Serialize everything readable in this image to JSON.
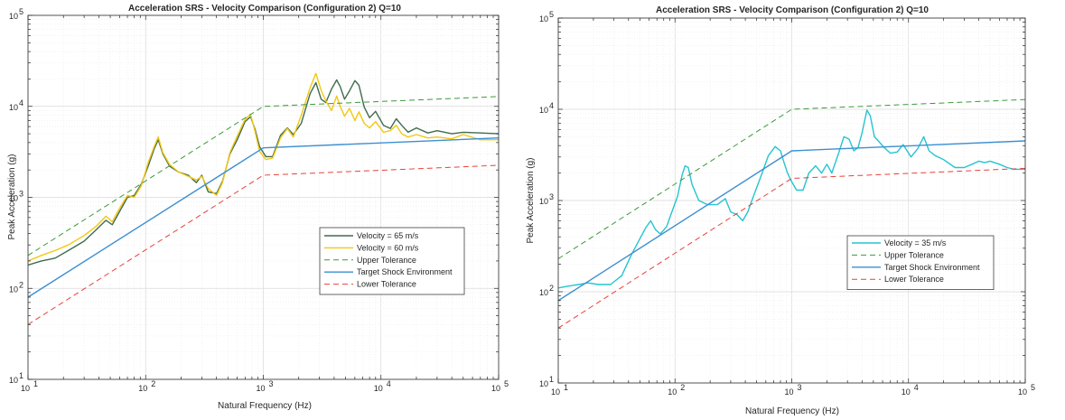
{
  "chart_data": [
    {
      "type": "line",
      "title": "Acceleration SRS - Velocity Comparison (Configuration 2) Q=10",
      "xlabel": "Natural Frequency (Hz)",
      "ylabel": "Peak Acceleration (g)",
      "xscale": "log",
      "yscale": "log",
      "xlim": [
        10,
        100000
      ],
      "ylim": [
        10,
        100000
      ],
      "grid": true,
      "legend_position": "lower-right",
      "xticks": [
        {
          "base": "10",
          "exp": "1"
        },
        {
          "base": "10",
          "exp": "2"
        },
        {
          "base": "10",
          "exp": "3"
        },
        {
          "base": "10",
          "exp": "4"
        },
        {
          "base": "10",
          "exp": "5"
        }
      ],
      "yticks": [
        {
          "base": "10",
          "exp": "1"
        },
        {
          "base": "10",
          "exp": "2"
        },
        {
          "base": "10",
          "exp": "3"
        },
        {
          "base": "10",
          "exp": "4"
        },
        {
          "base": "10",
          "exp": "5"
        }
      ],
      "series": [
        {
          "name": "Velocity = 65 m/s",
          "color": "#3f6b4f",
          "dash": "solid",
          "x": [
            10,
            13,
            17,
            22,
            30,
            38,
            46,
            52,
            60,
            70,
            80,
            92,
            105,
            118,
            128,
            140,
            160,
            190,
            230,
            270,
            300,
            340,
            400,
            450,
            520,
            600,
            700,
            780,
            850,
            930,
            1050,
            1200,
            1400,
            1600,
            1800,
            2100,
            2500,
            2800,
            3100,
            3400,
            3800,
            4200,
            4500,
            4900,
            5400,
            6000,
            6500,
            7200,
            8000,
            9000,
            10500,
            12000,
            13500,
            15000,
            17000,
            20000,
            25000,
            30000,
            40000,
            50000,
            70000,
            100000
          ],
          "y": [
            180,
            200,
            215,
            260,
            330,
            440,
            560,
            500,
            700,
            1000,
            1050,
            1400,
            2200,
            3400,
            4300,
            3000,
            2200,
            1900,
            1750,
            1450,
            1750,
            1150,
            1100,
            1500,
            3000,
            4300,
            6800,
            7700,
            5600,
            3600,
            2800,
            2800,
            4800,
            5800,
            4900,
            6500,
            13800,
            18200,
            12000,
            11000,
            15500,
            19500,
            16500,
            12000,
            14800,
            19200,
            17000,
            9800,
            7500,
            8800,
            6200,
            5700,
            7300,
            6200,
            5200,
            5800,
            5100,
            5400,
            5000,
            5200,
            5100,
            5000
          ]
        },
        {
          "name": "Velocity = 60 m/s",
          "color": "#f2c811",
          "dash": "solid",
          "x": [
            10,
            13,
            17,
            22,
            30,
            38,
            46,
            52,
            60,
            70,
            80,
            92,
            105,
            118,
            128,
            140,
            160,
            190,
            230,
            270,
            300,
            340,
            400,
            450,
            520,
            600,
            700,
            780,
            850,
            930,
            1050,
            1200,
            1400,
            1600,
            1800,
            2100,
            2500,
            2800,
            3100,
            3400,
            3800,
            4200,
            4500,
            4900,
            5400,
            6000,
            6500,
            7200,
            8000,
            9000,
            10500,
            12000,
            13500,
            15000,
            17000,
            20000,
            25000,
            30000,
            40000,
            50000,
            70000,
            100000
          ],
          "y": [
            200,
            230,
            260,
            300,
            380,
            480,
            620,
            540,
            760,
            1050,
            1000,
            1350,
            2400,
            3600,
            4600,
            3100,
            2300,
            1900,
            1700,
            1550,
            1700,
            1250,
            1050,
            1450,
            3100,
            4700,
            7200,
            8200,
            5300,
            3200,
            2600,
            2700,
            4500,
            5700,
            4600,
            8000,
            16000,
            23000,
            15000,
            11500,
            9000,
            13000,
            10000,
            7800,
            9500,
            7000,
            8700,
            6500,
            5800,
            6800,
            5200,
            5400,
            6200,
            5000,
            4600,
            4900,
            4500,
            4600,
            4400,
            4900,
            4300,
            4300
          ]
        },
        {
          "name": "Upper Tolerance",
          "color": "#3a9a3a",
          "dash": "dashed",
          "x": [
            10,
            1000,
            100000
          ],
          "y": [
            230,
            10000,
            12800
          ]
        },
        {
          "name": "Target Shock Environment",
          "color": "#3d8fd1",
          "dash": "solid",
          "x": [
            10,
            1000,
            100000
          ],
          "y": [
            80,
            3500,
            4500
          ]
        },
        {
          "name": "Lower Tolerance",
          "color": "#e8413b",
          "dash": "dashed",
          "x": [
            10,
            1000,
            100000
          ],
          "y": [
            40,
            1750,
            2250
          ]
        }
      ]
    },
    {
      "type": "line",
      "title": "Acceleration SRS - Velocity Comparison (Configuration 2) Q=10",
      "xlabel": "Natural Frequency (Hz)",
      "ylabel": "Peak Acceleration (g)",
      "xscale": "log",
      "yscale": "log",
      "xlim": [
        10,
        100000
      ],
      "ylim": [
        10,
        100000
      ],
      "grid": true,
      "legend_position": "lower-right",
      "xticks": [
        {
          "base": "10",
          "exp": "1"
        },
        {
          "base": "10",
          "exp": "2"
        },
        {
          "base": "10",
          "exp": "3"
        },
        {
          "base": "10",
          "exp": "4"
        },
        {
          "base": "10",
          "exp": "5"
        }
      ],
      "yticks": [
        {
          "base": "10",
          "exp": "1"
        },
        {
          "base": "10",
          "exp": "2"
        },
        {
          "base": "10",
          "exp": "3"
        },
        {
          "base": "10",
          "exp": "4"
        },
        {
          "base": "10",
          "exp": "5"
        }
      ],
      "series": [
        {
          "name": "Velocity = 35 m/s",
          "color": "#25c4d0",
          "dash": "solid",
          "x": [
            10,
            12,
            15,
            18,
            22,
            28,
            35,
            42,
            50,
            56,
            62,
            68,
            75,
            85,
            95,
            105,
            115,
            122,
            130,
            140,
            160,
            190,
            230,
            270,
            300,
            340,
            380,
            420,
            480,
            550,
            630,
            720,
            800,
            860,
            920,
            1000,
            1100,
            1250,
            1400,
            1600,
            1800,
            2000,
            2200,
            2500,
            2800,
            3100,
            3400,
            3700,
            4000,
            4400,
            4700,
            5100,
            5600,
            6200,
            7000,
            8000,
            9000,
            10500,
            12000,
            13500,
            15000,
            17000,
            20000,
            25000,
            30000,
            35000,
            40000,
            45000,
            50000,
            60000,
            70000,
            80000,
            100000
          ],
          "y": [
            110,
            115,
            120,
            125,
            120,
            120,
            150,
            250,
            380,
            500,
            600,
            480,
            430,
            520,
            780,
            1100,
            1900,
            2400,
            2300,
            1500,
            1000,
            900,
            900,
            1050,
            750,
            700,
            600,
            750,
            1200,
            1900,
            3100,
            3900,
            3500,
            2600,
            2000,
            1600,
            1300,
            1300,
            2000,
            2400,
            2000,
            2500,
            2000,
            3200,
            5000,
            4700,
            3500,
            3800,
            5500,
            9800,
            8500,
            5000,
            4400,
            3800,
            3300,
            3400,
            4100,
            3000,
            3700,
            5000,
            3500,
            3100,
            2800,
            2300,
            2300,
            2500,
            2700,
            2600,
            2700,
            2500,
            2300,
            2200,
            2200
          ]
        },
        {
          "name": "Upper Tolerance",
          "color": "#3a9a3a",
          "dash": "dashed",
          "x": [
            10,
            1000,
            100000
          ],
          "y": [
            230,
            10000,
            12800
          ]
        },
        {
          "name": "Target Shock Environment",
          "color": "#3d8fd1",
          "dash": "solid",
          "x": [
            10,
            1000,
            100000
          ],
          "y": [
            80,
            3500,
            4500
          ]
        },
        {
          "name": "Lower Tolerance",
          "color": "#e8413b",
          "dash": "dashed",
          "x": [
            10,
            1000,
            100000
          ],
          "y": [
            40,
            1750,
            2250
          ]
        }
      ]
    }
  ]
}
